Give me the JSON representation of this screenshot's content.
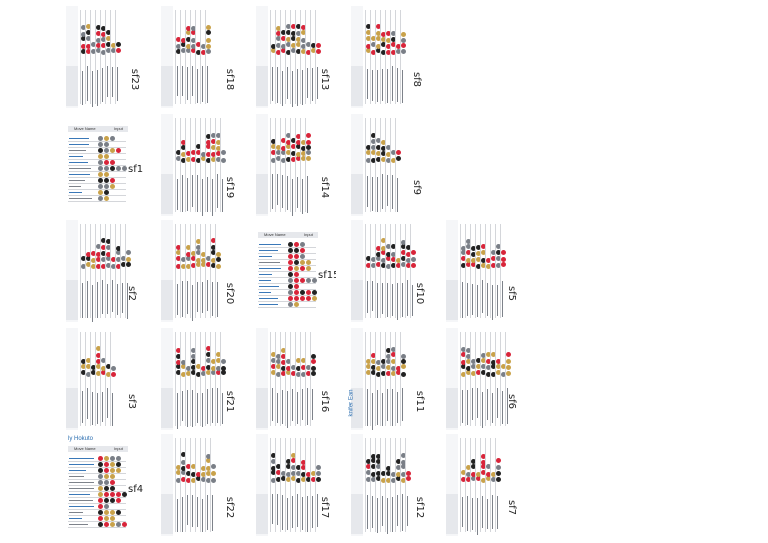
{
  "tiles": [
    {
      "label": "sf23",
      "col": 0,
      "row": 0,
      "rot": true
    },
    {
      "label": "sf18",
      "col": 1,
      "row": 0,
      "rot": true
    },
    {
      "label": "sf13",
      "col": 2,
      "row": 0,
      "rot": true
    },
    {
      "label": "sf8",
      "col": 3,
      "row": 0,
      "rot": true
    },
    {
      "label": "sf1",
      "col": 0,
      "row": 1,
      "rot": false
    },
    {
      "label": "sf19",
      "col": 1,
      "row": 1,
      "rot": true
    },
    {
      "label": "sf14",
      "col": 2,
      "row": 1,
      "rot": true
    },
    {
      "label": "sf9",
      "col": 3,
      "row": 1,
      "rot": true
    },
    {
      "label": "sf2",
      "col": 0,
      "row": 2,
      "rot": true
    },
    {
      "label": "sf20",
      "col": 1,
      "row": 2,
      "rot": true
    },
    {
      "label": "sf15",
      "col": 2,
      "row": 2,
      "rot": false
    },
    {
      "label": "sf10",
      "col": 3,
      "row": 2,
      "rot": true
    },
    {
      "label": "sf5",
      "col": 4,
      "row": 2,
      "rot": true
    },
    {
      "label": "sf3",
      "col": 0,
      "row": 3,
      "rot": true
    },
    {
      "label": "sf21",
      "col": 1,
      "row": 3,
      "rot": true
    },
    {
      "label": "sf16",
      "col": 2,
      "row": 3,
      "rot": true
    },
    {
      "label": "sf11",
      "col": 3,
      "row": 3,
      "rot": true
    },
    {
      "label": "sf6",
      "col": 4,
      "row": 3,
      "rot": true
    },
    {
      "label": "sf4",
      "col": 0,
      "row": 4,
      "rot": false
    },
    {
      "label": "sf22",
      "col": 1,
      "row": 4,
      "rot": true
    },
    {
      "label": "sf17",
      "col": 2,
      "row": 4,
      "rot": true
    },
    {
      "label": "sf12",
      "col": 3,
      "row": 4,
      "rot": true
    },
    {
      "label": "sf7",
      "col": 4,
      "row": 4,
      "rot": true
    }
  ],
  "headers": {
    "move_name": "Move Name",
    "input": "Input"
  },
  "section_titles": {
    "sf4": "ly Hokuto",
    "sf11": "knifer Ean"
  },
  "icon_colors": [
    "#d8253a",
    "#222222",
    "#c9a24a",
    "#7a7f87"
  ]
}
